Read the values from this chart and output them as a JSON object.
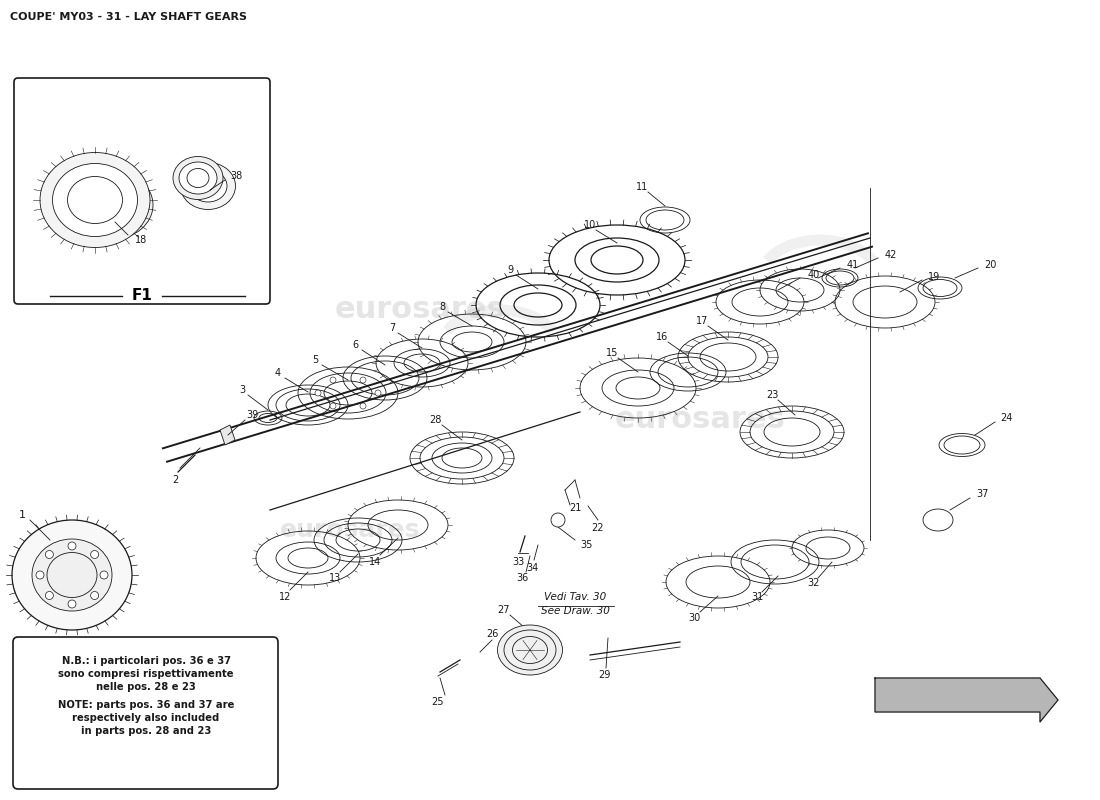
{
  "title": "COUPE' MY03 - 31 - LAY SHAFT GEARS",
  "title_fontsize": 8,
  "bg_color": "#ffffff",
  "line_color": "#1a1a1a",
  "figsize": [
    11.0,
    8.0
  ],
  "dpi": 100,
  "note_line1": "N.B.: i particolari pos. 36 e 37",
  "note_line2": "sono compresi rispettivamente",
  "note_line3": "nelle pos. 28 e 23",
  "note_line4": "NOTE: parts pos. 36 and 37 are",
  "note_line5": "respectively also included",
  "note_line6": "in parts pos. 28 and 23",
  "vedi_line1": "Vedi Tav. 30",
  "vedi_line2": "See Draw. 30",
  "f1_label": "F1"
}
